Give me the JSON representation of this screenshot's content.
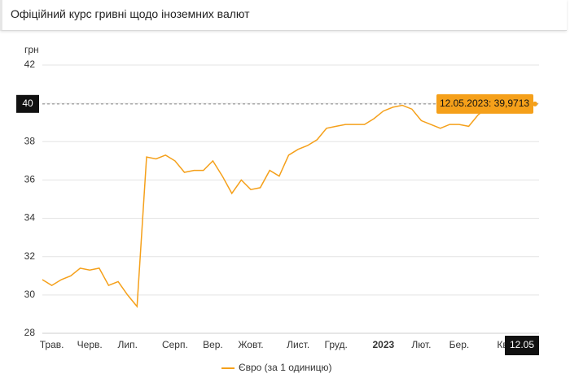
{
  "header": {
    "title": "Офіційний курс гривні щодо іноземних валют"
  },
  "chart_data": {
    "type": "line",
    "y_label": "грн",
    "categories": [
      null,
      "Трав.",
      null,
      null,
      null,
      "Черв.",
      null,
      null,
      null,
      "Лип.",
      null,
      null,
      null,
      null,
      "Серп.",
      null,
      null,
      null,
      "Вер.",
      null,
      null,
      null,
      "Жовт.",
      null,
      null,
      null,
      null,
      "Лист.",
      null,
      null,
      null,
      "Груд.",
      null,
      null,
      null,
      null,
      "2023",
      null,
      null,
      null,
      "Лют.",
      null,
      null,
      null,
      "Бер.",
      null,
      null,
      null,
      null,
      "Квіт.",
      null,
      null,
      null
    ],
    "series": [
      {
        "name": "Євро (за 1 одиницю)",
        "color": "#f5a01a",
        "values": [
          30.8,
          30.5,
          30.8,
          31.0,
          31.4,
          31.3,
          31.4,
          30.5,
          30.7,
          30.0,
          29.4,
          37.2,
          37.1,
          37.3,
          37.0,
          36.4,
          36.5,
          36.5,
          37.0,
          36.2,
          35.3,
          36.0,
          35.5,
          35.6,
          36.5,
          36.2,
          37.3,
          37.6,
          37.8,
          38.1,
          38.7,
          38.8,
          38.9,
          38.9,
          38.9,
          39.2,
          39.6,
          39.8,
          39.9,
          39.7,
          39.1,
          38.9,
          38.7,
          38.9,
          38.9,
          38.8,
          39.4,
          39.8,
          39.9,
          40.0,
          40.0,
          40.1,
          39.9713
        ]
      }
    ],
    "ylim": [
      28,
      42
    ],
    "yticks": [
      28,
      30,
      32,
      34,
      36,
      38,
      40,
      42
    ],
    "grid": true,
    "tooltip": "12.05.2023: 39,9713",
    "crosshair": {
      "x_label": "12.05",
      "y_label": {
        "value": 39.9713,
        "label": "40"
      }
    }
  }
}
